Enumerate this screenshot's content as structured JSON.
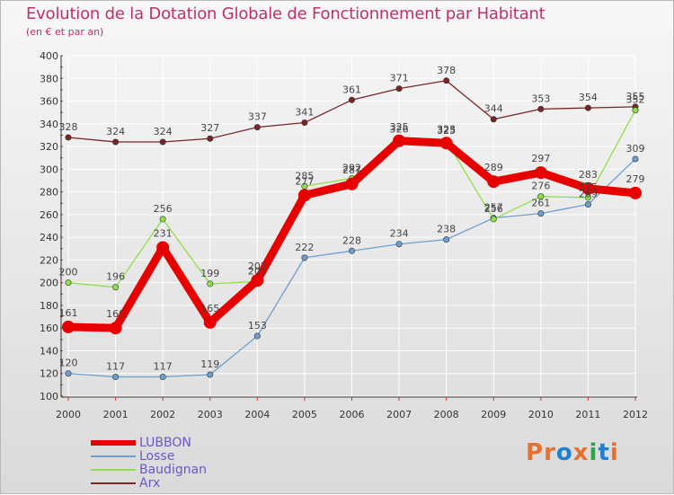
{
  "title": "Evolution de la Dotation Globale de Fonctionnement par Habitant",
  "subtitle": "(en € et par an)",
  "logo": {
    "text": "Proxiti",
    "colors": [
      "#e8702a",
      "#e8702a",
      "#1f7fd1",
      "#e8702a",
      "#2aa84a",
      "#1f7fd1",
      "#e8702a"
    ]
  },
  "chart_data": {
    "type": "line",
    "title": "Evolution de la Dotation Globale de Fonctionnement par Habitant",
    "ylabel": "(en € et par an)",
    "ylim": [
      100,
      400
    ],
    "yticks": [
      100,
      120,
      140,
      160,
      180,
      200,
      220,
      240,
      260,
      280,
      300,
      320,
      340,
      360,
      380,
      400
    ],
    "ytick_labels": [
      "100",
      "120",
      "140",
      "160",
      "180",
      "200",
      "220",
      "240",
      "260",
      "280",
      "300",
      "320",
      "340",
      "360",
      "380",
      "400"
    ],
    "categories": [
      "2000",
      "2001",
      "2002",
      "2003",
      "2004",
      "2005",
      "2006",
      "2007",
      "2008",
      "2009",
      "2010",
      "2011",
      "2012"
    ],
    "legend_position": "bottom-left",
    "series": [
      {
        "name": "Arx",
        "color": "#7a2525",
        "width": "thin",
        "values": [
          328,
          324,
          324,
          327,
          337,
          341,
          361,
          371,
          378,
          344,
          353,
          354,
          355
        ]
      },
      {
        "name": "Losse",
        "color": "#6e9fd0",
        "width": "thin",
        "values": [
          120,
          117,
          117,
          119,
          153,
          222,
          228,
          234,
          238,
          257,
          261,
          269,
          309
        ]
      },
      {
        "name": "Baudignan",
        "color": "#8ee04a",
        "width": "thin",
        "values": [
          200,
          196,
          256,
          199,
          201,
          285,
          292,
          326,
          325,
          256,
          276,
          275,
          352
        ]
      },
      {
        "name": "LUBBON",
        "color": "#e80000",
        "width": "thick",
        "values": [
          161,
          160,
          231,
          165,
          202,
          277,
          287,
          325,
          323,
          289,
          297,
          283,
          279
        ]
      }
    ],
    "data_labels": {
      "Arx": [
        "328",
        "324",
        "324",
        "327",
        "337",
        "341",
        "361",
        "371",
        "378",
        "344",
        "353",
        "354",
        "355"
      ],
      "Losse": [
        "120",
        "117",
        "117",
        "119",
        "153",
        "222",
        "228",
        "234",
        "238",
        "257",
        "261",
        "269",
        "309"
      ],
      "Baudignan": [
        "200",
        "196",
        "256",
        "199",
        "201",
        "285",
        "292",
        "326",
        "325",
        "256",
        "276",
        "275",
        "352"
      ],
      "LUBBON": [
        "161",
        "160",
        "231",
        "165",
        "202",
        "277",
        "287",
        "325",
        "323",
        "289",
        "297",
        "283",
        "279"
      ]
    },
    "legend": [
      "LUBBON",
      "Losse",
      "Baudignan",
      "Arx"
    ]
  }
}
